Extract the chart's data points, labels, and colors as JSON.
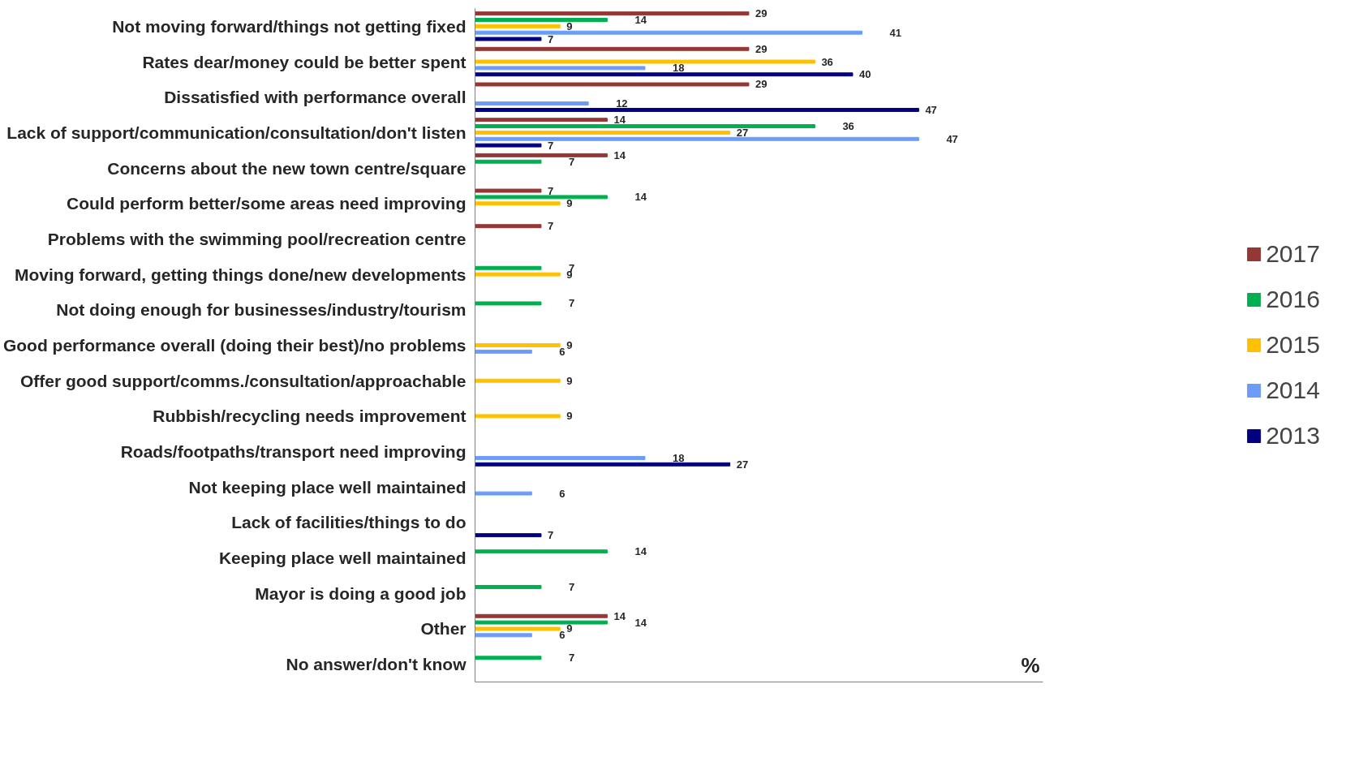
{
  "chart_data": {
    "type": "bar",
    "orientation": "horizontal",
    "annotations": [
      "%"
    ],
    "tick_labels": "y",
    "legend": "right",
    "data_labels": true,
    "grid": false,
    "categories": [
      "Not moving forward/things not getting fixed",
      "Rates dear/money could be better spent",
      "Dissatisfied with performance overall",
      "Lack of support/communication/consultation/don't listen",
      "Concerns about the new town centre/square",
      "Could perform better/some areas need improving",
      "Problems with the swimming pool/recreation centre",
      "Moving forward, getting things done/new developments",
      "Not doing enough for businesses/industry/tourism",
      "Good performance overall (doing their best)/no problems",
      "Offer good support/comms./consultation/approachable",
      "Rubbish/recycling needs improvement",
      "Roads/footpaths/transport need improving",
      "Not keeping place well maintained",
      "Lack of facilities/things to do",
      "Keeping place well maintained",
      "Mayor is doing a good job",
      "Other",
      "No answer/don't know"
    ],
    "series": [
      {
        "name": "2017",
        "color": "#953735",
        "values": [
          29,
          29,
          29,
          14,
          14,
          7,
          7,
          null,
          null,
          null,
          null,
          null,
          null,
          null,
          null,
          null,
          null,
          14,
          null
        ]
      },
      {
        "name": "2016",
        "color": "#00b050",
        "values": [
          14,
          null,
          null,
          36,
          7,
          14,
          null,
          7,
          7,
          null,
          null,
          null,
          null,
          null,
          null,
          14,
          7,
          14,
          7
        ]
      },
      {
        "name": "2015",
        "color": "#ffc000",
        "values": [
          9,
          36,
          null,
          27,
          null,
          9,
          null,
          9,
          null,
          9,
          9,
          9,
          null,
          null,
          null,
          null,
          null,
          9,
          null
        ]
      },
      {
        "name": "2014",
        "color": "#6b9cf7",
        "values": [
          41,
          18,
          12,
          47,
          null,
          null,
          null,
          null,
          null,
          6,
          null,
          null,
          18,
          6,
          null,
          null,
          null,
          6,
          null
        ]
      },
      {
        "name": "2013",
        "color": "#000080",
        "values": [
          7,
          40,
          47,
          7,
          null,
          null,
          null,
          null,
          null,
          null,
          null,
          null,
          27,
          null,
          7,
          null,
          null,
          null,
          null
        ]
      }
    ]
  }
}
